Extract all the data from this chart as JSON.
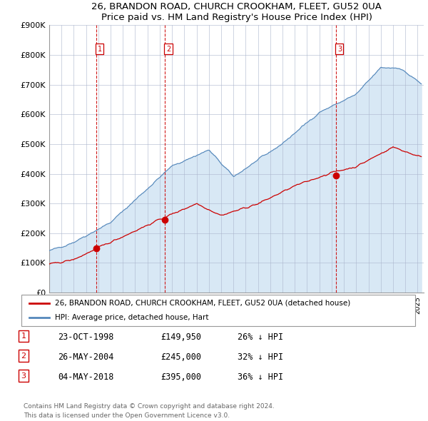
{
  "title1": "26, BRANDON ROAD, CHURCH CROOKHAM, FLEET, GU52 0UA",
  "title2": "Price paid vs. HM Land Registry's House Price Index (HPI)",
  "ylim": [
    0,
    900000
  ],
  "xlim_start": 1995.0,
  "xlim_end": 2025.5,
  "yticks": [
    0,
    100000,
    200000,
    300000,
    400000,
    500000,
    600000,
    700000,
    800000,
    900000
  ],
  "ytick_labels": [
    "£0",
    "£100K",
    "£200K",
    "£300K",
    "£400K",
    "£500K",
    "£600K",
    "£700K",
    "£800K",
    "£900K"
  ],
  "sale_dates": [
    1998.81,
    2004.4,
    2018.34
  ],
  "sale_prices": [
    149950,
    245000,
    395000
  ],
  "sale_labels": [
    "1",
    "2",
    "3"
  ],
  "red_line_color": "#cc0000",
  "blue_line_color": "#5588bb",
  "bg_shaded_color": "#d8e8f5",
  "grid_color": "#aab4cc",
  "legend_line1": "26, BRANDON ROAD, CHURCH CROOKHAM, FLEET, GU52 0UA (detached house)",
  "legend_line2": "HPI: Average price, detached house, Hart",
  "table_data": [
    [
      "1",
      "23-OCT-1998",
      "£149,950",
      "26% ↓ HPI"
    ],
    [
      "2",
      "26-MAY-2004",
      "£245,000",
      "32% ↓ HPI"
    ],
    [
      "3",
      "04-MAY-2018",
      "£395,000",
      "36% ↓ HPI"
    ]
  ],
  "footnote": "Contains HM Land Registry data © Crown copyright and database right 2024.\nThis data is licensed under the Open Government Licence v3.0."
}
